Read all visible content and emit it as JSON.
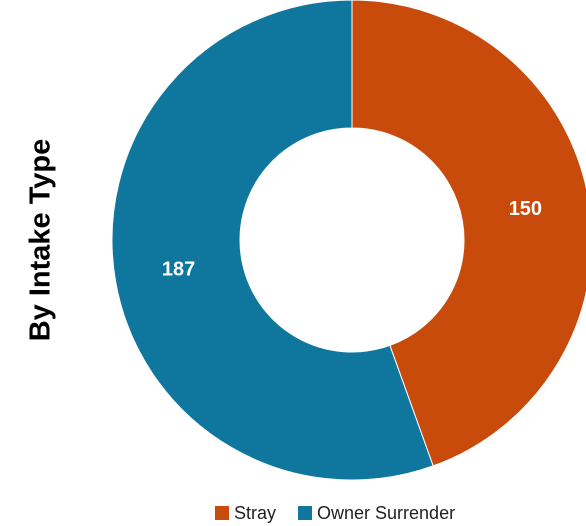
{
  "chart_data": {
    "type": "donut",
    "title": "By Intake Type",
    "categories": [
      "Stray",
      "Owner Surrender"
    ],
    "values": [
      150,
      187
    ],
    "colors": [
      "#c84b0c",
      "#0f769e"
    ],
    "legend": "bottom"
  }
}
